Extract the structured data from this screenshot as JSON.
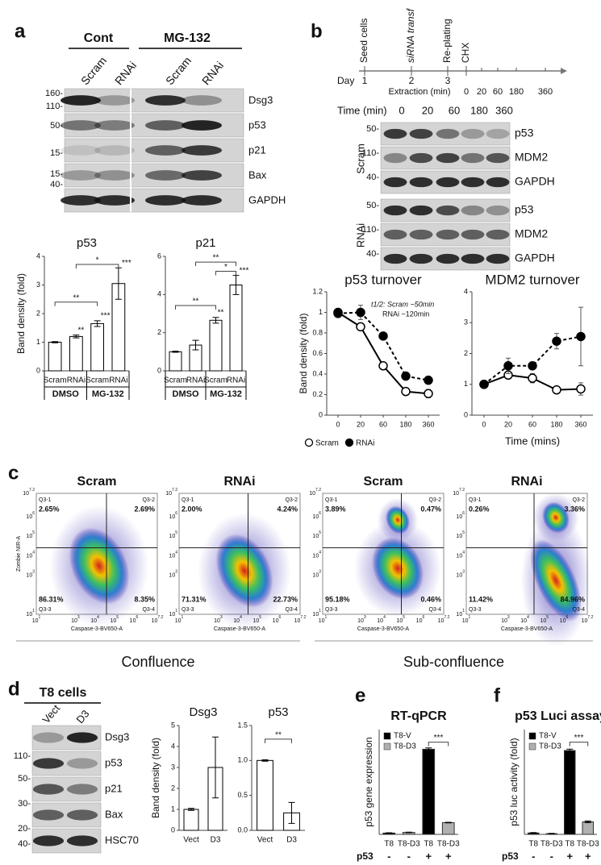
{
  "panel_labels": [
    "a",
    "b",
    "c",
    "d",
    "e",
    "f"
  ],
  "blot_a": {
    "groups": [
      "Cont",
      "MG-132"
    ],
    "lanes": [
      "Scram",
      "RNAi",
      "Scram",
      "RNAi"
    ],
    "proteins": [
      "Dsg3",
      "p53",
      "p21",
      "Bax",
      "GAPDH"
    ],
    "markers": [
      "160-",
      "110-",
      "50-",
      "15-",
      "15-",
      "40-"
    ]
  },
  "timeline_b": {
    "events": [
      "Seed cells",
      "siRNA transf",
      "Re-plating",
      "CHX"
    ],
    "day_label": "Day",
    "days": [
      "1",
      "2",
      "3"
    ],
    "extraction_label": "Extraction (min)",
    "times": [
      "0",
      "20",
      "60",
      "180",
      "360"
    ]
  },
  "blot_b": {
    "time_label": "Time (min)",
    "times": [
      "0",
      "20",
      "60",
      "180",
      "360"
    ],
    "groups": [
      "Scram",
      "RNAi"
    ],
    "proteins": [
      "p53",
      "MDM2",
      "GAPDH"
    ],
    "markers": [
      "50-",
      "110-",
      "40-"
    ]
  },
  "flow": {
    "ylabel": "Zombie NIR-A",
    "xlabel": "Caspase-3-BV650-A",
    "ticks": [
      {
        "base": "10",
        "exp": "1"
      },
      {
        "base": "10",
        "exp": "3"
      },
      {
        "base": "10",
        "exp": "4"
      },
      {
        "base": "10",
        "exp": "5"
      },
      {
        "base": "10",
        "exp": "6"
      },
      {
        "base": "10",
        "exp": "7.2"
      }
    ],
    "plots": [
      {
        "title": "Scram",
        "quadrants": [
          "Q3-1",
          "Q3-2",
          "Q3-3",
          "Q3-4"
        ],
        "percents": [
          "2.65%",
          "2.69%",
          "86.31%",
          "8.35%"
        ]
      },
      {
        "title": "RNAi",
        "quadrants": [
          "Q3-1",
          "Q3-2",
          "Q3-3",
          "Q3-4"
        ],
        "percents": [
          "2.00%",
          "4.24%",
          "71.31%",
          "22.73%"
        ]
      },
      {
        "title": "Scram",
        "quadrants": [
          "Q3-1",
          "Q3-2",
          "Q3-3",
          "Q3-4"
        ],
        "percents": [
          "3.89%",
          "0.47%",
          "95.18%",
          "0.46%"
        ]
      },
      {
        "title": "RNAi",
        "quadrants": [
          "Q3-1",
          "Q3-2",
          "Q3-3",
          "Q3-4"
        ],
        "percents": [
          "0.26%",
          "3.36%",
          "11.42%",
          "84.96%"
        ]
      }
    ],
    "groups": [
      "Confluence",
      "Sub-confluence"
    ]
  },
  "blot_d": {
    "title": "T8 cells",
    "lanes": [
      "Vect",
      "D3"
    ],
    "proteins": [
      "Dsg3",
      "p53",
      "p21",
      "Bax",
      "HSC70"
    ],
    "markers": [
      "110-",
      "50-",
      "30-",
      "20-",
      "40-"
    ]
  },
  "chart_data": [
    {
      "type": "bar",
      "title": "p53",
      "ylabel": "Band density (fold)",
      "categories": [
        "Scram",
        "RNAi",
        "Scram",
        "RNAi"
      ],
      "groups": [
        "DMSO",
        "MG-132"
      ],
      "values": [
        1,
        1.2,
        1.65,
        3.05
      ],
      "errors": [
        0.02,
        0.05,
        0.1,
        0.55
      ],
      "color": "#ffffff",
      "edge": "#000000",
      "ylim": [
        0,
        4
      ],
      "yticks": [
        0,
        1,
        2,
        3,
        4
      ],
      "annotations": [
        null,
        "**",
        "***",
        "***"
      ],
      "significance": [
        "**",
        "*"
      ]
    },
    {
      "type": "bar",
      "title": "p21",
      "categories": [
        "Scram",
        "RNAi",
        "Scram",
        "RNAi"
      ],
      "groups": [
        "DMSO",
        "MG-132"
      ],
      "values": [
        1,
        1.35,
        2.65,
        4.5
      ],
      "errors": [
        0.03,
        0.25,
        0.15,
        0.5
      ],
      "color": "#ffffff",
      "edge": "#000000",
      "ylim": [
        0,
        6
      ],
      "yticks": [
        0,
        2,
        4,
        6
      ],
      "annotations": [
        null,
        null,
        "**",
        "***"
      ],
      "significance": [
        "**",
        "*",
        "**"
      ]
    },
    {
      "type": "line",
      "title": "p53 turnover",
      "ylabel": "Band density (fold)",
      "categories": [
        "0",
        "20",
        "60",
        "180",
        "360"
      ],
      "series": [
        {
          "name": "Scram",
          "color": "#ffffff",
          "dashed": false,
          "values": [
            1,
            0.86,
            0.48,
            0.23,
            0.21
          ],
          "errors": [
            0.01,
            0.03,
            0.02,
            0.03,
            0.04
          ]
        },
        {
          "name": "RNAi",
          "color": "#000000",
          "dashed": true,
          "values": [
            0.99,
            1,
            0.77,
            0.38,
            0.34
          ],
          "errors": [
            0.01,
            0.07,
            0.03,
            0.03,
            0.03
          ]
        }
      ],
      "ylim": [
        0,
        1.2
      ],
      "yticks": [
        0,
        0.2,
        0.4,
        0.6,
        0.8,
        1,
        1.2
      ],
      "note": [
        "t1/2: Scram ~50min",
        "RNAi ~120min"
      ]
    },
    {
      "type": "line",
      "title": "MDM2 turnover",
      "xlabel": "Time (mins)",
      "categories": [
        "0",
        "20",
        "60",
        "180",
        "360"
      ],
      "series": [
        {
          "name": "Scram",
          "color": "#ffffff",
          "dashed": false,
          "values": [
            1,
            1.3,
            1.2,
            0.82,
            0.85
          ],
          "errors": [
            0.03,
            0.1,
            0.15,
            0.08,
            0.2
          ]
        },
        {
          "name": "RNAi",
          "color": "#000000",
          "dashed": true,
          "values": [
            1,
            1.6,
            1.6,
            2.4,
            2.55
          ],
          "errors": [
            0.03,
            0.25,
            0.12,
            0.25,
            0.95
          ]
        }
      ],
      "ylim": [
        0,
        4
      ],
      "yticks": [
        0,
        1,
        2,
        3,
        4
      ]
    },
    {
      "type": "bar",
      "title": "Dsg3",
      "ylabel": "Band density (fold)",
      "categories": [
        "Vect",
        "D3"
      ],
      "values": [
        1,
        3.0
      ],
      "errors": [
        0.05,
        1.45
      ],
      "color": "#ffffff",
      "edge": "#000000",
      "ylim": [
        0,
        5
      ],
      "yticks": [
        0,
        1,
        2,
        3,
        4,
        5
      ]
    },
    {
      "type": "bar",
      "title": "p53",
      "categories": [
        "Vect",
        "D3"
      ],
      "values": [
        1,
        0.25
      ],
      "errors": [
        0.01,
        0.15
      ],
      "color": "#ffffff",
      "edge": "#000000",
      "ylim": [
        0,
        1.5
      ],
      "yticks": [
        {
          "value": 0,
          "label": "0.0"
        },
        0.5,
        {
          "value": 1,
          "label": "1.0"
        },
        1.5
      ],
      "significance": [
        "**"
      ]
    },
    {
      "type": "bar",
      "title": "RT-qPCR",
      "ylabel": "p53 gene expression",
      "categories": [
        "T8",
        "T8-D3",
        "T8",
        "T8-D3"
      ],
      "series": [
        {
          "name": "T8-V",
          "color": "#000000",
          "values": [
            0.01,
            null,
            0.65,
            null
          ],
          "errors": [
            0.002,
            null,
            0.01,
            null
          ]
        },
        {
          "name": "T8-D3",
          "color": "#b0b0b0",
          "values": [
            null,
            0.015,
            null,
            0.09
          ],
          "errors": [
            null,
            0.002,
            null,
            0.002
          ]
        }
      ],
      "ylim": [
        0,
        0.8
      ],
      "condition_label": "p53",
      "condition": [
        "-",
        "-",
        "+",
        "+"
      ],
      "significance": [
        "***"
      ]
    },
    {
      "type": "bar",
      "title": "p53 Luci assay",
      "ylabel": "p53 luc activity (fold)",
      "categories": [
        "T8",
        "T8-D3",
        "T8",
        "T8-D3"
      ],
      "series": [
        {
          "name": "T8-V",
          "color": "#000000",
          "values": [
            1,
            null,
            60,
            null
          ],
          "errors": [
            0.3,
            null,
            1,
            null
          ]
        },
        {
          "name": "T8-D3",
          "color": "#b0b0b0",
          "values": [
            null,
            0.5,
            null,
            9
          ],
          "errors": [
            null,
            0.2,
            null,
            0.6
          ]
        }
      ],
      "ylim": [
        0,
        75
      ],
      "condition_label": "p53",
      "condition": [
        "-",
        "-",
        "+",
        "+"
      ],
      "significance": [
        "***"
      ]
    }
  ]
}
